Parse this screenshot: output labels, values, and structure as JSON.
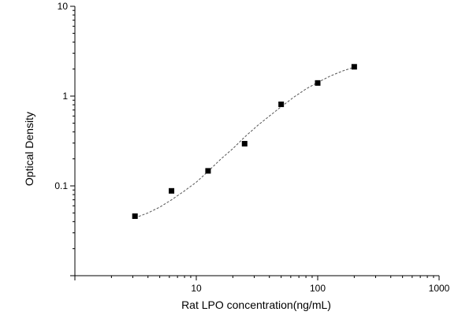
{
  "chart_data": {
    "type": "scatter",
    "title": "",
    "xlabel": "Rat LPO concentration(ng/mL)",
    "ylabel": "Optical Density",
    "xscale": "log",
    "yscale": "log",
    "xlim": [
      1,
      1000
    ],
    "ylim": [
      0.01,
      10
    ],
    "x_ticks": [
      10,
      100,
      1000
    ],
    "x_tick_labels": [
      "10",
      "100",
      "1000"
    ],
    "y_ticks": [
      0.1,
      1,
      10
    ],
    "y_tick_labels": [
      "0.1",
      "1",
      "10"
    ],
    "grid": false,
    "legend": "none",
    "colors": {
      "points": "#000000",
      "curve": "#555555",
      "axis": "#000000"
    },
    "series": [
      {
        "x": [
          3.125,
          6.25,
          12.5,
          25,
          50,
          100,
          200
        ],
        "y": [
          0.046,
          0.088,
          0.147,
          0.295,
          0.81,
          1.4,
          2.12
        ]
      }
    ],
    "fit_curve": {
      "x": [
        3.125,
        4,
        5,
        6.25,
        8,
        10,
        12.5,
        16,
        20,
        25,
        32,
        40,
        50,
        64,
        80,
        100,
        128,
        160,
        200
      ],
      "y": [
        0.044,
        0.05,
        0.058,
        0.07,
        0.088,
        0.11,
        0.145,
        0.2,
        0.26,
        0.35,
        0.47,
        0.6,
        0.76,
        0.98,
        1.2,
        1.42,
        1.68,
        1.9,
        2.1
      ]
    }
  }
}
